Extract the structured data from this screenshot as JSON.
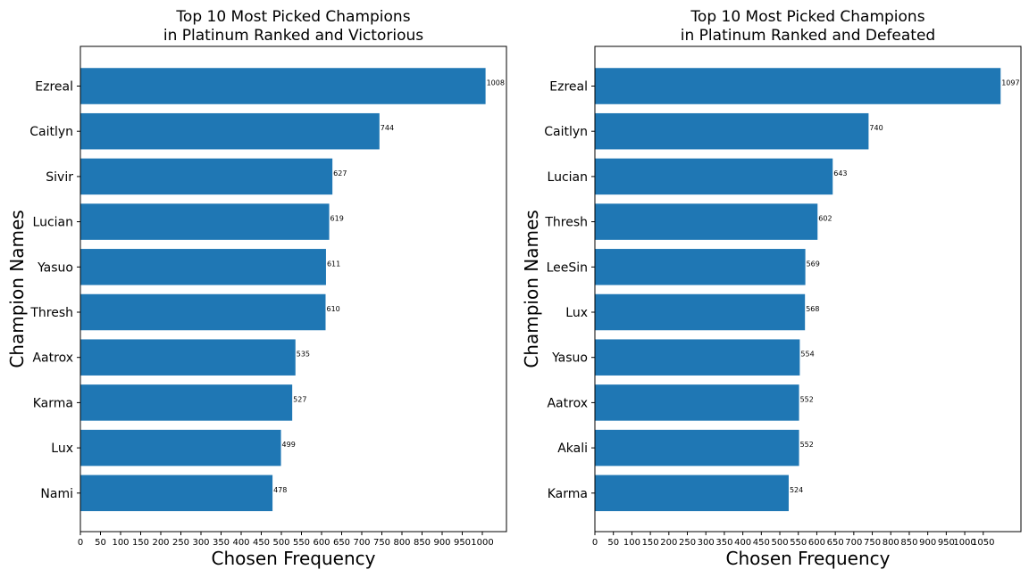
{
  "chart_data": [
    {
      "type": "bar",
      "orientation": "horizontal",
      "title_lines": [
        "Top 10 Most Picked Champions",
        "in Platinum Ranked and Victorious"
      ],
      "xlabel": "Chosen Frequency",
      "ylabel": "Champion Names",
      "categories": [
        "Ezreal",
        "Caitlyn",
        "Sivir",
        "Lucian",
        "Yasuo",
        "Thresh",
        "Aatrox",
        "Karma",
        "Lux",
        "Nami"
      ],
      "values": [
        1008,
        744,
        627,
        619,
        611,
        610,
        535,
        527,
        499,
        478
      ],
      "data_labels": [
        "1008",
        "744",
        "627",
        "619",
        "611",
        "610",
        "535",
        "527",
        "499",
        "478"
      ],
      "xlim": [
        0,
        1060
      ],
      "xticks": [
        0,
        50,
        100,
        150,
        200,
        250,
        300,
        350,
        400,
        450,
        500,
        550,
        600,
        650,
        700,
        750,
        800,
        850,
        900,
        950,
        1000
      ],
      "xtick_labels": [
        "0",
        "50",
        "100",
        "150",
        "200",
        "250",
        "300",
        "350",
        "400",
        "450",
        "500",
        "550",
        "600",
        "650",
        "700",
        "750",
        "800",
        "850",
        "900",
        "950",
        "1000"
      ],
      "grid": false,
      "bar_color": "#1f77b4"
    },
    {
      "type": "bar",
      "orientation": "horizontal",
      "title_lines": [
        "Top 10 Most Picked Champions",
        "in Platinum Ranked and Defeated"
      ],
      "xlabel": "Chosen Frequency",
      "ylabel": "Champion Names",
      "categories": [
        "Ezreal",
        "Caitlyn",
        "Lucian",
        "Thresh",
        "LeeSin",
        "Lux",
        "Yasuo",
        "Aatrox",
        "Akali",
        "Karma"
      ],
      "values": [
        1097,
        740,
        643,
        602,
        569,
        568,
        554,
        552,
        552,
        524
      ],
      "data_labels": [
        "1097",
        "740",
        "643",
        "602",
        "569",
        "568",
        "554",
        "552",
        "552",
        "524"
      ],
      "xlim": [
        0,
        1152
      ],
      "xticks": [
        0,
        50,
        100,
        150,
        200,
        250,
        300,
        350,
        400,
        450,
        500,
        550,
        600,
        650,
        700,
        750,
        800,
        850,
        900,
        950,
        1000,
        1050
      ],
      "xtick_labels": [
        "0",
        "50",
        "100",
        "150",
        "200",
        "250",
        "300",
        "350",
        "400",
        "450",
        "500",
        "550",
        "600",
        "650",
        "700",
        "750",
        "800",
        "850",
        "900",
        "950",
        "1000",
        "1050"
      ],
      "grid": false,
      "bar_color": "#1f77b4"
    }
  ]
}
